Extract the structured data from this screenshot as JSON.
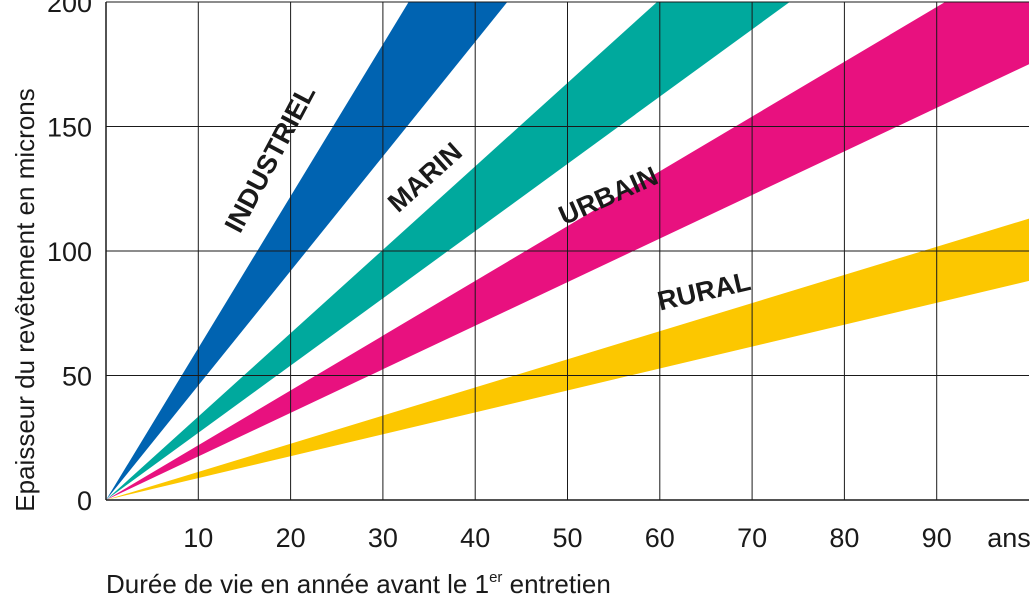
{
  "chart_data": {
    "type": "area",
    "title": "",
    "xlabel": "Durée de vie en année avant le 1",
    "xlabel_superscript": "er",
    "xlabel_suffix": " entretien",
    "ylabel": "Epaisseur du revêtement en microns",
    "x_unit_label": "ans",
    "xlim": [
      0,
      100
    ],
    "ylim": [
      0,
      200
    ],
    "x_ticks": [
      10,
      20,
      30,
      40,
      50,
      60,
      70,
      80,
      90
    ],
    "y_ticks": [
      0,
      50,
      100,
      150,
      200
    ],
    "grid": true,
    "series": [
      {
        "name": "INDUSTRIEL",
        "color": "#0063b1",
        "x": [
          0,
          100
        ],
        "lower": [
          0,
          460
        ],
        "upper": [
          0,
          610
        ]
      },
      {
        "name": "MARIN",
        "color": "#00a99d",
        "x": [
          0,
          100
        ],
        "lower": [
          0,
          270
        ],
        "upper": [
          0,
          335
        ]
      },
      {
        "name": "URBAIN",
        "color": "#e8117f",
        "x": [
          0,
          100
        ],
        "lower": [
          0,
          175
        ],
        "upper": [
          0,
          220
        ]
      },
      {
        "name": "RURAL",
        "color": "#fcc700",
        "x": [
          0,
          100
        ],
        "lower": [
          0,
          88
        ],
        "upper": [
          0,
          113
        ]
      }
    ]
  }
}
